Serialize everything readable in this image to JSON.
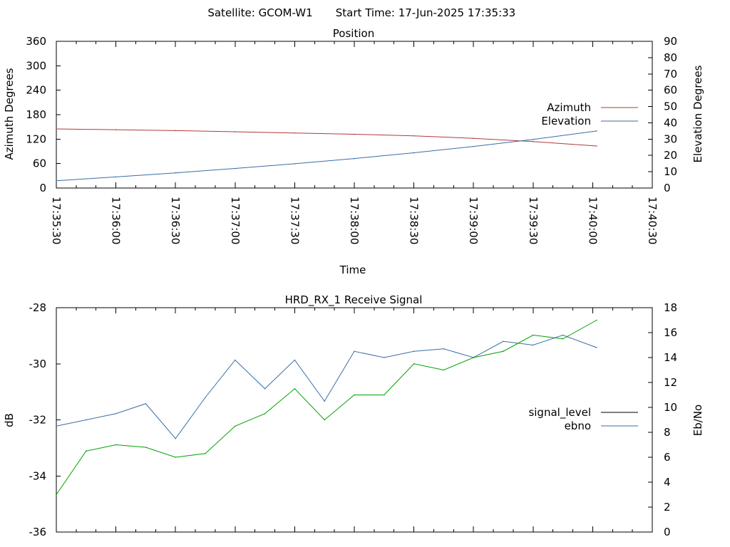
{
  "header": {
    "satellite": "Satellite: GCOM-W1",
    "start_time": "Start Time: 17-Jun-2025 17:35:33"
  },
  "chart_data": [
    {
      "type": "line",
      "title": "Position",
      "xlabel": "Time",
      "ylabel": "Azimuth Degrees",
      "y2label": "Elevation Degrees",
      "x_ticks": [
        "17:35:30",
        "17:36:00",
        "17:36:30",
        "17:37:00",
        "17:37:30",
        "17:38:00",
        "17:38:30",
        "17:39:00",
        "17:39:30",
        "17:40:00",
        "17:40:30"
      ],
      "xlim": [
        "17:35:30",
        "17:40:30"
      ],
      "ylim": [
        0,
        360
      ],
      "y2lim": [
        0,
        90
      ],
      "y_ticks": [
        0,
        60,
        120,
        180,
        240,
        300,
        360
      ],
      "y2_ticks": [
        0,
        10,
        20,
        30,
        40,
        50,
        60,
        70,
        80,
        90
      ],
      "legend_position": "right",
      "grid": false,
      "series": [
        {
          "name": "Azimuth",
          "axis": "left",
          "color": "#b03a3a",
          "x": [
            "17:35:30",
            "17:36:00",
            "17:36:30",
            "17:37:00",
            "17:37:30",
            "17:38:00",
            "17:38:30",
            "17:39:00",
            "17:39:30",
            "17:40:02"
          ],
          "values": [
            145,
            143,
            141,
            138,
            135,
            132,
            128,
            122,
            114,
            103
          ]
        },
        {
          "name": "Elevation",
          "axis": "right",
          "color": "#3a6ea5",
          "x": [
            "17:35:30",
            "17:36:00",
            "17:36:30",
            "17:37:00",
            "17:37:30",
            "17:38:00",
            "17:38:30",
            "17:39:00",
            "17:39:30",
            "17:40:02"
          ],
          "values": [
            4.5,
            6.8,
            9.3,
            12.0,
            14.9,
            18.1,
            21.6,
            25.5,
            29.8,
            35.0
          ]
        }
      ]
    },
    {
      "type": "line",
      "title": "HRD_RX_1 Receive Signal",
      "ylabel": "dB",
      "y2label": "Eb/No",
      "xlim": [
        "17:35:30",
        "17:40:30"
      ],
      "ylim": [
        -36,
        -28
      ],
      "y2lim": [
        0,
        18
      ],
      "y_ticks": [
        -36,
        -34,
        -32,
        -30,
        -28
      ],
      "y2_ticks": [
        0,
        2,
        4,
        6,
        8,
        10,
        12,
        14,
        16,
        18
      ],
      "legend_position": "right",
      "grid": false,
      "series": [
        {
          "name": "signal_level",
          "axis": "left",
          "color": "#000000",
          "x": [],
          "values": []
        },
        {
          "name": "ebno",
          "axis": "right",
          "color": "#3a6ea5",
          "x": [
            "17:35:30",
            "17:35:45",
            "17:36:00",
            "17:36:15",
            "17:36:30",
            "17:36:45",
            "17:37:00",
            "17:37:15",
            "17:37:30",
            "17:37:45",
            "17:38:00",
            "17:38:15",
            "17:38:30",
            "17:38:45",
            "17:39:00",
            "17:39:15",
            "17:39:30",
            "17:39:45",
            "17:40:02"
          ],
          "values": [
            8.5,
            9.0,
            9.5,
            10.3,
            7.5,
            10.8,
            13.8,
            11.5,
            13.8,
            10.5,
            14.5,
            14.0,
            14.5,
            14.7,
            14.0,
            15.3,
            15.0,
            15.8,
            14.8
          ]
        },
        {
          "name": "",
          "axis": "right",
          "color": "#00a000",
          "x": [
            "17:35:30",
            "17:35:45",
            "17:36:00",
            "17:36:15",
            "17:36:30",
            "17:36:45",
            "17:37:00",
            "17:37:15",
            "17:37:30",
            "17:37:45",
            "17:38:00",
            "17:38:15",
            "17:38:30",
            "17:38:45",
            "17:39:00",
            "17:39:15",
            "17:39:30",
            "17:39:45",
            "17:40:02"
          ],
          "values": [
            3.0,
            6.5,
            7.0,
            6.8,
            6.0,
            6.3,
            8.5,
            9.5,
            11.5,
            9.0,
            11.0,
            11.0,
            13.5,
            13.0,
            14.0,
            14.5,
            15.8,
            15.5,
            17.0
          ]
        }
      ]
    }
  ]
}
